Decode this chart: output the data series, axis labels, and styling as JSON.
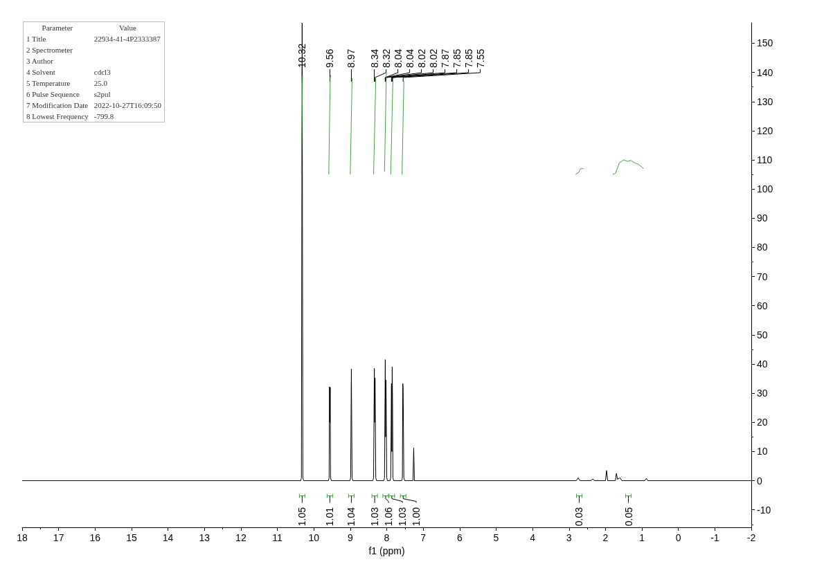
{
  "chart_data": {
    "type": "line",
    "xlabel": "f1 (ppm)",
    "xlim": [
      18,
      -2
    ],
    "xticks": [
      18,
      17,
      16,
      15,
      14,
      13,
      12,
      11,
      10,
      9,
      8,
      7,
      6,
      5,
      4,
      3,
      2,
      1,
      0,
      -1,
      -2
    ],
    "ylim": [
      -16,
      157
    ],
    "yticks": [
      -10,
      0,
      10,
      20,
      30,
      40,
      50,
      60,
      70,
      80,
      90,
      100,
      110,
      120,
      130,
      140,
      150
    ],
    "marker": "none",
    "series": [
      {
        "color": "#000000",
        "x": [
          18,
          10.36,
          10.34,
          10.32,
          10.3,
          10.28,
          9.6,
          9.58,
          9.57,
          9.56,
          9.55,
          9.54,
          9.52,
          9.01,
          8.99,
          8.97,
          8.95,
          8.93,
          8.38,
          8.36,
          8.34,
          8.33,
          8.32,
          8.3,
          8.28,
          8.08,
          8.06,
          8.04,
          8.03,
          8.02,
          8.0,
          7.98,
          7.91,
          7.89,
          7.87,
          7.86,
          7.85,
          7.84,
          7.83,
          7.81,
          7.59,
          7.57,
          7.56,
          7.55,
          7.53,
          7.51,
          7.28,
          7.26,
          7.24,
          2.8,
          2.75,
          2.7,
          2.4,
          2.35,
          2.3,
          2.0,
          1.97,
          1.94,
          1.73,
          1.7,
          1.67,
          1.6,
          1.55,
          0.92,
          0.88,
          0.84,
          -2
        ],
        "values": [
          0,
          0,
          1,
          157,
          1,
          0,
          0,
          1,
          32.2,
          20,
          32,
          1,
          0,
          0,
          1,
          38.3,
          1,
          0,
          0,
          1,
          38.5,
          20,
          35.2,
          1,
          0,
          0,
          1,
          41.5,
          15,
          34.5,
          1,
          0,
          0,
          1,
          33.3,
          10,
          39,
          27,
          1,
          0,
          0,
          1,
          33.3,
          32,
          1,
          0,
          0,
          11.2,
          0,
          0,
          1,
          0,
          0,
          0.6,
          0,
          0,
          3.5,
          0,
          0,
          2.5,
          0.5,
          1,
          0,
          0,
          0.8,
          0,
          0
        ]
      },
      {
        "color": "#3aa53a",
        "x": [
          10.34,
          10.31,
          10.0,
          9.59,
          9.55,
          9.54,
          9.53,
          9.3,
          9.0,
          8.95,
          8.6,
          8.36,
          8.3,
          8.2,
          8.06,
          8.01,
          7.95,
          7.89,
          7.83,
          7.7,
          7.58,
          7.53,
          7.4,
          2.82,
          2.75,
          2.68,
          2.6,
          2.5,
          1.8,
          1.72,
          1.62,
          1.5,
          1.4,
          1.3,
          1.2,
          1.1,
          0.95
        ],
        "values": [
          105,
          139,
          null,
          105,
          138,
          139,
          138.5,
          null,
          105,
          138,
          null,
          105,
          138,
          null,
          106,
          140,
          null,
          105,
          138,
          null,
          105,
          137,
          null,
          105,
          105.5,
          107,
          107,
          null,
          105,
          105.5,
          109,
          110,
          109.5,
          109.8,
          109,
          108.5,
          107
        ]
      }
    ],
    "annotations": [
      {
        "text": "10.32",
        "x": 10.32
      },
      {
        "text": "9.56",
        "x": 9.56
      },
      {
        "text": "8.97",
        "x": 8.97
      },
      {
        "text": "8.34",
        "x": 8.34
      },
      {
        "text": "8.32",
        "x": 8.32
      },
      {
        "text": "8.04",
        "x": 8.04
      },
      {
        "text": "8.04",
        "x": 8.04
      },
      {
        "text": "8.02",
        "x": 8.02
      },
      {
        "text": "8.02",
        "x": 8.02
      },
      {
        "text": "7.87",
        "x": 7.87
      },
      {
        "text": "7.85",
        "x": 7.85
      },
      {
        "text": "7.85",
        "x": 7.85
      },
      {
        "text": "7.55",
        "x": 7.55
      },
      "Parameter\tValue",
      "1 Title\t22934-41-4P2333387",
      "2 Spectrometer",
      "3 Author",
      "4 Solvent\tcdcl3",
      "5 Temperature\t25.0",
      "6 Pulse Sequence\ts2pul",
      "7 Modification Date\t2022-10-27T16:09:50",
      "8 Lowest Frequency\t-799.8",
      {
        "text": "1.05",
        "x": 10.32
      },
      {
        "text": "1.01",
        "x": 9.56
      },
      {
        "text": "1.04",
        "x": 8.97
      },
      {
        "text": "1.03",
        "x": 8.33
      },
      {
        "text": "1.06",
        "x": 8.03
      },
      {
        "text": "1.03",
        "x": 7.86
      },
      {
        "text": "1.00",
        "x": 7.55
      },
      {
        "text": "0.03",
        "x": 2.72
      },
      {
        "text": "0.05",
        "x": 1.37
      }
    ]
  }
}
